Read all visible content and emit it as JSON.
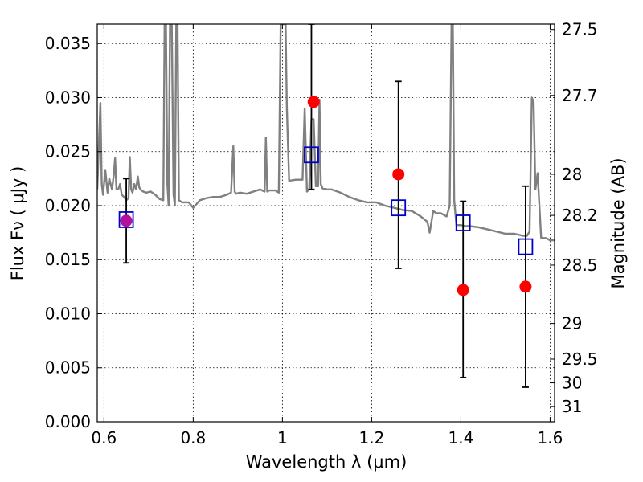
{
  "chart_data": {
    "type": "scatter",
    "xlabel": "Wavelength  λ (μm)",
    "ylabel": "Flux  Fν  ( μJy )",
    "ylabel_right": "Magnitude (AB)",
    "xlim": [
      0.585,
      1.61
    ],
    "ylim": [
      0.0,
      0.0368
    ],
    "grid": true,
    "x_ticks": [
      0.6,
      0.8,
      1.0,
      1.2,
      1.4,
      1.6
    ],
    "x_tick_labels": [
      "0.6",
      "0.8",
      "1",
      "1.2",
      "1.4",
      "1.6"
    ],
    "y_ticks": [
      0.0,
      0.005,
      0.01,
      0.015,
      0.02,
      0.025,
      0.03,
      0.035
    ],
    "y_tick_labels": [
      "0.000",
      "0.005",
      "0.010",
      "0.015",
      "0.020",
      "0.025",
      "0.030",
      "0.035"
    ],
    "right_ticks": [
      {
        "label": "27.5",
        "flux": 0.0363
      },
      {
        "label": "27.7",
        "flux": 0.0302
      },
      {
        "label": "28",
        "flux": 0.0229
      },
      {
        "label": "28.2",
        "flux": 0.0191
      },
      {
        "label": "28.5",
        "flux": 0.0145
      },
      {
        "label": "29",
        "flux": 0.0091
      },
      {
        "label": "29.5",
        "flux": 0.0058
      },
      {
        "label": "30",
        "flux": 0.0036
      },
      {
        "label": "31",
        "flux": 0.0014
      }
    ],
    "colors": {
      "spectrum": "#808080",
      "observed": "#ff0000",
      "model": "#0000cc",
      "errorbar": "#000000",
      "overlap": "#b3119c"
    },
    "series": [
      {
        "kind": "spectrum",
        "x": [
          0.585,
          0.592,
          0.595,
          0.598,
          0.603,
          0.608,
          0.612,
          0.618,
          0.622,
          0.625,
          0.628,
          0.632,
          0.636,
          0.64,
          0.645,
          0.65,
          0.655,
          0.658,
          0.661,
          0.664,
          0.668,
          0.672,
          0.676,
          0.679,
          0.682,
          0.688,
          0.695,
          0.705,
          0.715,
          0.725,
          0.733,
          0.736,
          0.739,
          0.742,
          0.745,
          0.748,
          0.752,
          0.756,
          0.759,
          0.762,
          0.765,
          0.768,
          0.775,
          0.79,
          0.8,
          0.815,
          0.83,
          0.845,
          0.86,
          0.875,
          0.885,
          0.89,
          0.893,
          0.896,
          0.905,
          0.92,
          0.935,
          0.95,
          0.96,
          0.963,
          0.966,
          0.97,
          0.985,
          0.992,
          0.996,
          0.999,
          1.003,
          1.007,
          1.01,
          1.015,
          1.03,
          1.045,
          1.05,
          1.055,
          1.06,
          1.065,
          1.07,
          1.075,
          1.08,
          1.083,
          1.086,
          1.09,
          1.1,
          1.11,
          1.13,
          1.15,
          1.17,
          1.19,
          1.21,
          1.23,
          1.25,
          1.27,
          1.29,
          1.31,
          1.325,
          1.33,
          1.338,
          1.345,
          1.355,
          1.368,
          1.375,
          1.379,
          1.382,
          1.385,
          1.39,
          1.4,
          1.41,
          1.42,
          1.44,
          1.46,
          1.48,
          1.5,
          1.52,
          1.54,
          1.548,
          1.554,
          1.559,
          1.563,
          1.567,
          1.572,
          1.58,
          1.59,
          1.6,
          1.61
        ],
        "y": [
          0.0215,
          0.0295,
          0.022,
          0.021,
          0.0233,
          0.0212,
          0.0225,
          0.0215,
          0.0228,
          0.0244,
          0.0215,
          0.0215,
          0.022,
          0.021,
          0.0208,
          0.0205,
          0.0207,
          0.0245,
          0.0215,
          0.0212,
          0.022,
          0.0215,
          0.0227,
          0.0217,
          0.0215,
          0.0213,
          0.0212,
          0.0213,
          0.021,
          0.0206,
          0.0205,
          0.0368,
          0.0368,
          0.022,
          0.02,
          0.0368,
          0.0368,
          0.021,
          0.02,
          0.0368,
          0.0368,
          0.0205,
          0.0203,
          0.0203,
          0.0198,
          0.0205,
          0.0207,
          0.0208,
          0.0208,
          0.021,
          0.0212,
          0.0255,
          0.0213,
          0.0211,
          0.0212,
          0.0211,
          0.0213,
          0.0215,
          0.0213,
          0.0263,
          0.0213,
          0.0214,
          0.0214,
          0.0212,
          0.0368,
          0.0368,
          0.0368,
          0.0368,
          0.029,
          0.0223,
          0.0224,
          0.0224,
          0.029,
          0.0213,
          0.0215,
          0.028,
          0.028,
          0.0218,
          0.0218,
          0.0298,
          0.022,
          0.0216,
          0.0215,
          0.0215,
          0.0212,
          0.0208,
          0.0205,
          0.0203,
          0.0203,
          0.02,
          0.0198,
          0.0196,
          0.0195,
          0.019,
          0.0185,
          0.0175,
          0.0195,
          0.0193,
          0.0193,
          0.019,
          0.02,
          0.0368,
          0.0368,
          0.0205,
          0.0182,
          0.0182,
          0.0181,
          0.0181,
          0.018,
          0.0178,
          0.0176,
          0.0174,
          0.0174,
          0.0172,
          0.0172,
          0.0176,
          0.03,
          0.0296,
          0.0215,
          0.023,
          0.017,
          0.017,
          0.0168,
          0.0168
        ]
      },
      {
        "kind": "observed",
        "x": [
          0.65,
          1.07,
          1.26,
          1.405,
          1.545
        ],
        "y": [
          0.0186,
          0.0296,
          0.0229,
          0.0122,
          0.0125
        ]
      },
      {
        "kind": "model",
        "x": [
          0.65,
          1.065,
          1.26,
          1.405,
          1.545
        ],
        "y": [
          0.0187,
          0.0247,
          0.0198,
          0.0184,
          0.0162
        ],
        "yerr_low": [
          0.0147,
          0.0215,
          0.0142,
          0.0041,
          0.0032
        ],
        "yerr_high": [
          0.0225,
          0.0368,
          0.0315,
          0.0204,
          0.0218
        ]
      }
    ]
  }
}
